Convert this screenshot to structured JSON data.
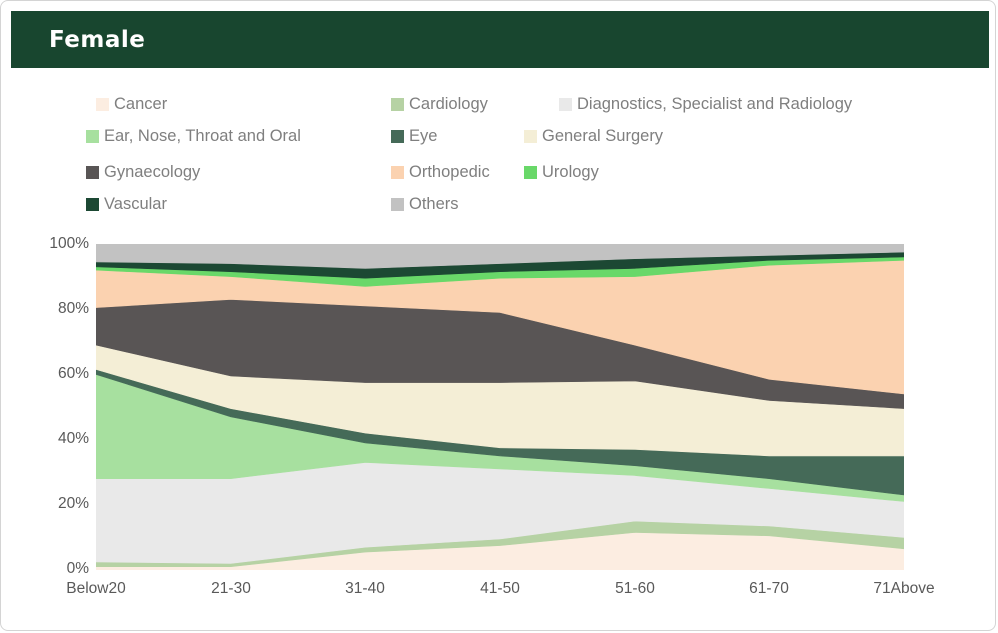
{
  "header": {
    "title": "Female",
    "bg_color": "#18462f",
    "text_color": "#ffffff"
  },
  "chart_data": {
    "type": "area",
    "stacked": true,
    "percent_stacked": true,
    "title": "Female",
    "xlabel": "",
    "ylabel": "",
    "ylim": [
      0,
      100
    ],
    "y_unit": "%",
    "grid": false,
    "legend_position": "top",
    "categories": [
      "Below20",
      "21-30",
      "31-40",
      "41-50",
      "51-60",
      "61-70",
      "71Above"
    ],
    "y_ticks": [
      "100%",
      "80%",
      "60%",
      "40%",
      "20%",
      "0%"
    ],
    "series": [
      {
        "name": "Cancer",
        "color": "#fcede1",
        "values": [
          1,
          1,
          5.5,
          7.5,
          11.5,
          10.5,
          6.5
        ]
      },
      {
        "name": "Cardiology",
        "color": "#b6d2a4",
        "values": [
          1.5,
          1,
          1.5,
          2,
          3.5,
          3,
          3.5
        ]
      },
      {
        "name": "Diagnostics, Specialist and Radiology",
        "color": "#e9e9e9",
        "values": [
          25.5,
          26,
          26,
          21.5,
          14,
          11.5,
          11
        ]
      },
      {
        "name": "Ear, Nose, Throat and Oral",
        "color": "#a7e09f",
        "values": [
          32,
          19,
          6,
          4,
          3,
          3,
          2
        ]
      },
      {
        "name": "Eye",
        "color": "#456a58",
        "values": [
          1.5,
          2.5,
          3,
          2.5,
          5,
          7,
          12
        ]
      },
      {
        "name": "General Surgery",
        "color": "#f4eed6",
        "values": [
          7.5,
          10,
          15.5,
          20,
          21,
          17,
          14.5
        ]
      },
      {
        "name": "Gynaecology",
        "color": "#595555",
        "values": [
          11.5,
          23.5,
          23.5,
          21.5,
          11,
          6.5,
          4.5
        ]
      },
      {
        "name": "Orthopedic",
        "color": "#fbd2b0",
        "values": [
          11.5,
          7,
          6,
          10.5,
          21,
          35,
          41
        ]
      },
      {
        "name": "Urology",
        "color": "#69d869",
        "values": [
          1,
          1.5,
          2.5,
          2,
          2.5,
          1.5,
          1
        ]
      },
      {
        "name": "Vascular",
        "color": "#1c4833",
        "values": [
          1.5,
          2.5,
          3,
          2.5,
          3,
          1.5,
          1.5
        ]
      },
      {
        "name": "Others",
        "color": "#c2c2c2",
        "values": [
          5.5,
          6,
          7.5,
          6,
          4.5,
          3.5,
          2.5
        ]
      }
    ]
  }
}
